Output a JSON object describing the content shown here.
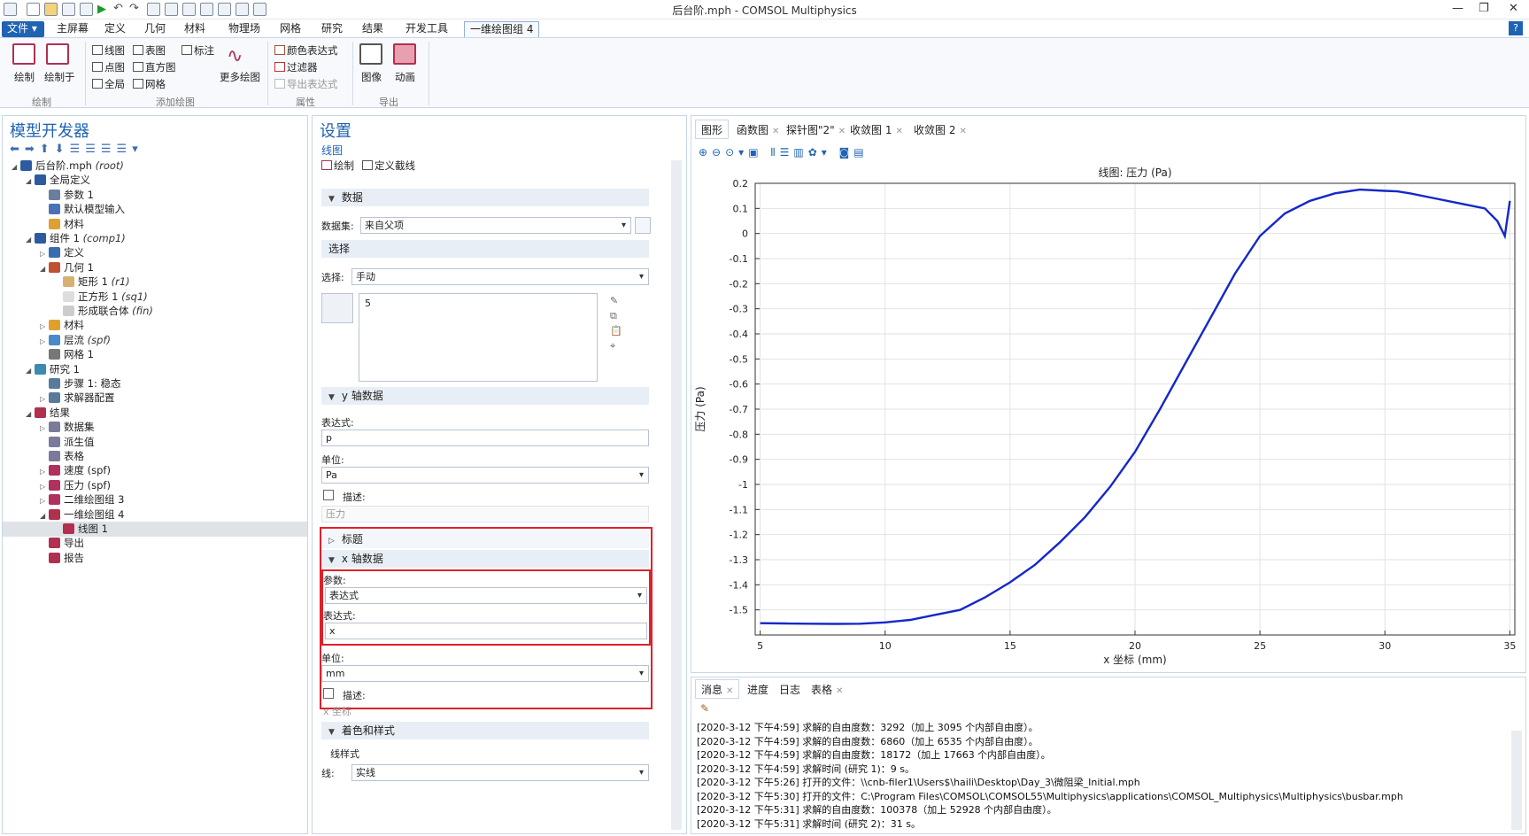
{
  "window": {
    "title": "后台阶.mph - COMSOL Multiphysics"
  },
  "ribbon_tabs": [
    "文件",
    "主屏幕",
    "定义",
    "几何",
    "材料",
    "物理场",
    "网格",
    "研究",
    "结果",
    "开发工具",
    "一维绘图组 4"
  ],
  "ribbon": {
    "plot": "绘制",
    "plot_in": "绘制于",
    "group_plot": "绘制",
    "line_graph": "线图",
    "table_graph": "表图",
    "annotation": "标注",
    "point_graph": "点图",
    "histogram": "直方图",
    "global": "全局",
    "mesh": "网格",
    "more_plots": "更多绘图",
    "group_add": "添加绘图",
    "color_expr": "颜色表达式",
    "filter": "过滤器",
    "export_expr": "导出表达式",
    "group_attr": "属性",
    "image": "图像",
    "animation": "动画",
    "group_export": "导出"
  },
  "model_builder": {
    "title": "模型开发器",
    "items": [
      {
        "label": "后台阶.mph",
        "tag": "(root)"
      },
      {
        "label": "全局定义",
        "tag": ""
      },
      {
        "label": "参数 1",
        "tag": ""
      },
      {
        "label": "默认模型输入",
        "tag": ""
      },
      {
        "label": "材料",
        "tag": ""
      },
      {
        "label": "组件 1",
        "tag": "(comp1)"
      },
      {
        "label": "定义",
        "tag": ""
      },
      {
        "label": "几何 1",
        "tag": ""
      },
      {
        "label": "矩形 1",
        "tag": "(r1)"
      },
      {
        "label": "正方形 1",
        "tag": "(sq1)"
      },
      {
        "label": "形成联合体",
        "tag": "(fin)"
      },
      {
        "label": "材料",
        "tag": ""
      },
      {
        "label": "层流",
        "tag": "(spf)"
      },
      {
        "label": "网格 1",
        "tag": ""
      },
      {
        "label": "研究 1",
        "tag": ""
      },
      {
        "label": "步骤 1: 稳态",
        "tag": ""
      },
      {
        "label": "求解器配置",
        "tag": ""
      },
      {
        "label": "结果",
        "tag": ""
      },
      {
        "label": "数据集",
        "tag": ""
      },
      {
        "label": "派生值",
        "tag": ""
      },
      {
        "label": "表格",
        "tag": ""
      },
      {
        "label": "速度 (spf)",
        "tag": ""
      },
      {
        "label": "压力 (spf)",
        "tag": ""
      },
      {
        "label": "二维绘图组 3",
        "tag": ""
      },
      {
        "label": "一维绘图组 4",
        "tag": ""
      },
      {
        "label": "线图 1",
        "tag": ""
      },
      {
        "label": "导出",
        "tag": ""
      },
      {
        "label": "报告",
        "tag": ""
      }
    ]
  },
  "settings": {
    "title": "设置",
    "subtitle": "线图",
    "plot": "绘制",
    "define_cut": "定义截线",
    "data_section": "数据",
    "dataset_label": "数据集:",
    "dataset_value": "来自父项",
    "selection_section": "选择",
    "selection_label": "选择:",
    "selection_value": "手动",
    "selection_item": "5",
    "y_section": "y 轴数据",
    "y_expr_label": "表达式:",
    "y_expr": "p",
    "y_unit_label": "单位:",
    "y_unit": "Pa",
    "y_desc_label": "描述:",
    "y_desc": "压力",
    "title_section": "标题",
    "x_section": "x 轴数据",
    "x_param_label": "参数:",
    "x_param": "表达式",
    "x_expr_label": "表达式:",
    "x_expr": "x",
    "x_unit_label": "单位:",
    "x_unit": "mm",
    "x_desc_label": "描述:",
    "x_desc": "x 坐标",
    "color_section": "着色和样式",
    "line_style": "线样式",
    "line_label": "线:",
    "line_value": "实线"
  },
  "graphics": {
    "tabs": [
      "图形",
      "函数图",
      "探针图\"2\"",
      "收敛图 1",
      "收敛图 2"
    ]
  },
  "chart_data": {
    "type": "line",
    "title": "线图: 压力 (Pa)",
    "xlabel": "x 坐标 (mm)",
    "ylabel": "压力 (Pa)",
    "xlim": [
      4.8,
      35.2
    ],
    "ylim": [
      -1.6,
      0.2
    ],
    "xticks": [
      5,
      10,
      15,
      20,
      25,
      30,
      35
    ],
    "yticks": [
      0.2,
      0.1,
      0,
      -0.1,
      -0.2,
      -0.3,
      -0.4,
      -0.5,
      -0.6,
      -0.7,
      -0.8,
      -0.9,
      -1,
      -1.1,
      -1.2,
      -1.3,
      -1.4,
      -1.5
    ],
    "grid": true,
    "color": "#1428c8",
    "x": [
      5,
      6,
      7,
      8,
      9,
      10,
      11,
      12,
      13,
      14,
      15,
      16,
      17,
      18,
      19,
      20,
      21,
      22,
      23,
      24,
      25,
      26,
      27,
      28,
      29,
      30,
      30.5,
      31,
      32,
      33,
      34,
      34.5,
      34.8,
      35
    ],
    "y": [
      -1.553,
      -1.554,
      -1.555,
      -1.556,
      -1.555,
      -1.55,
      -1.54,
      -1.52,
      -1.5,
      -1.45,
      -1.39,
      -1.32,
      -1.23,
      -1.13,
      -1.01,
      -0.87,
      -0.7,
      -0.52,
      -0.34,
      -0.16,
      -0.01,
      0.08,
      0.13,
      0.16,
      0.175,
      0.17,
      0.168,
      0.16,
      0.14,
      0.12,
      0.1,
      0.05,
      -0.01,
      0.13
    ]
  },
  "messages": {
    "tabs": [
      "消息",
      "进度",
      "日志",
      "表格"
    ],
    "lines": [
      "[2020-3-12 下午4:59] 求解的自由度数：3292（加上 3095 个内部自由度）。",
      "[2020-3-12 下午4:59] 求解的自由度数：6860（加上 6535 个内部自由度）。",
      "[2020-3-12 下午4:59] 求解的自由度数：18172（加上 17663 个内部自由度）。",
      "[2020-3-12 下午4:59] 求解时间 (研究 1)：9 s。",
      "[2020-3-12 下午5:26] 打开的文件：\\\\cnb-filer1\\Users$\\haili\\Desktop\\Day_3\\微阻梁_Initial.mph",
      "[2020-3-12 下午5:30] 打开的文件：C:\\Program Files\\COMSOL\\COMSOL55\\Multiphysics\\applications\\COMSOL_Multiphysics\\Multiphysics\\busbar.mph",
      "[2020-3-12 下午5:31] 求解的自由度数：100378（加上 52928 个内部自由度）。",
      "[2020-3-12 下午5:31] 求解时间 (研究 2)：31 s。"
    ]
  }
}
